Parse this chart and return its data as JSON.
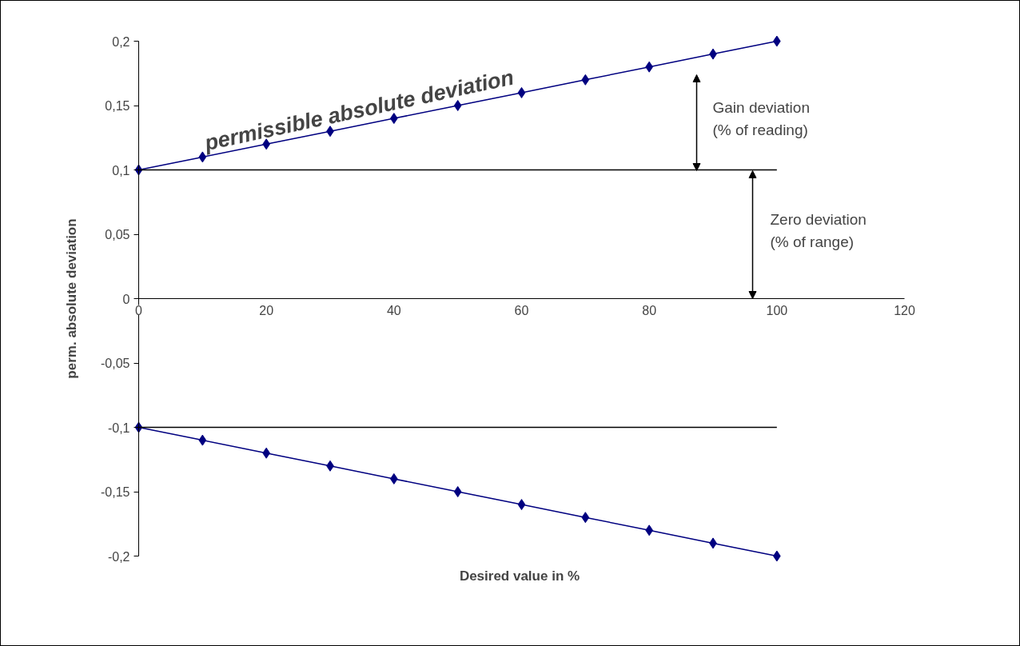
{
  "chart_data": {
    "type": "line",
    "xlabel": "Desired value in %",
    "ylabel": "perm. absolute deviation",
    "x": [
      0,
      10,
      20,
      30,
      40,
      50,
      60,
      70,
      80,
      90,
      100
    ],
    "series": [
      {
        "color": "#000080",
        "marker": "diamond",
        "values": [
          0.1,
          0.11,
          0.12,
          0.13,
          0.14,
          0.15,
          0.16,
          0.17,
          0.18,
          0.19,
          0.2
        ]
      },
      {
        "color": "#000080",
        "marker": "diamond",
        "values": [
          -0.1,
          -0.11,
          -0.12,
          -0.13,
          -0.14,
          -0.15,
          -0.16,
          -0.17,
          -0.18,
          -0.19,
          -0.2
        ]
      },
      {
        "color": "#000000",
        "marker": "none",
        "values": [
          0.1,
          0.1,
          0.1,
          0.1,
          0.1,
          0.1,
          0.1,
          0.1,
          0.1,
          0.1,
          0.1
        ]
      },
      {
        "color": "#000000",
        "marker": "none",
        "values": [
          -0.1,
          -0.1,
          -0.1,
          -0.1,
          -0.1,
          -0.1,
          -0.1,
          -0.1,
          -0.1,
          -0.1,
          -0.1
        ]
      }
    ],
    "xlim": [
      0,
      120
    ],
    "xticks": [
      0,
      20,
      40,
      60,
      80,
      100,
      120
    ],
    "ylim": [
      -0.2,
      0.2
    ],
    "yticks": [
      {
        "value": -0.2,
        "label": "-0,2"
      },
      {
        "value": -0.15,
        "label": "-0,15"
      },
      {
        "value": -0.1,
        "label": "-0,1"
      },
      {
        "value": -0.05,
        "label": "-0,05"
      },
      {
        "value": 0,
        "label": "0"
      },
      {
        "value": 0.05,
        "label": "0,05"
      },
      {
        "value": 0.1,
        "label": "0,1"
      },
      {
        "value": 0.15,
        "label": "0,15"
      },
      {
        "value": 0.2,
        "label": "0,2"
      }
    ],
    "annotations": [
      "permissible absolute deviation",
      "Gain deviation\n(% of reading)",
      "Zero deviation\n(% of range)"
    ],
    "grid": false,
    "line_style": "solid"
  }
}
